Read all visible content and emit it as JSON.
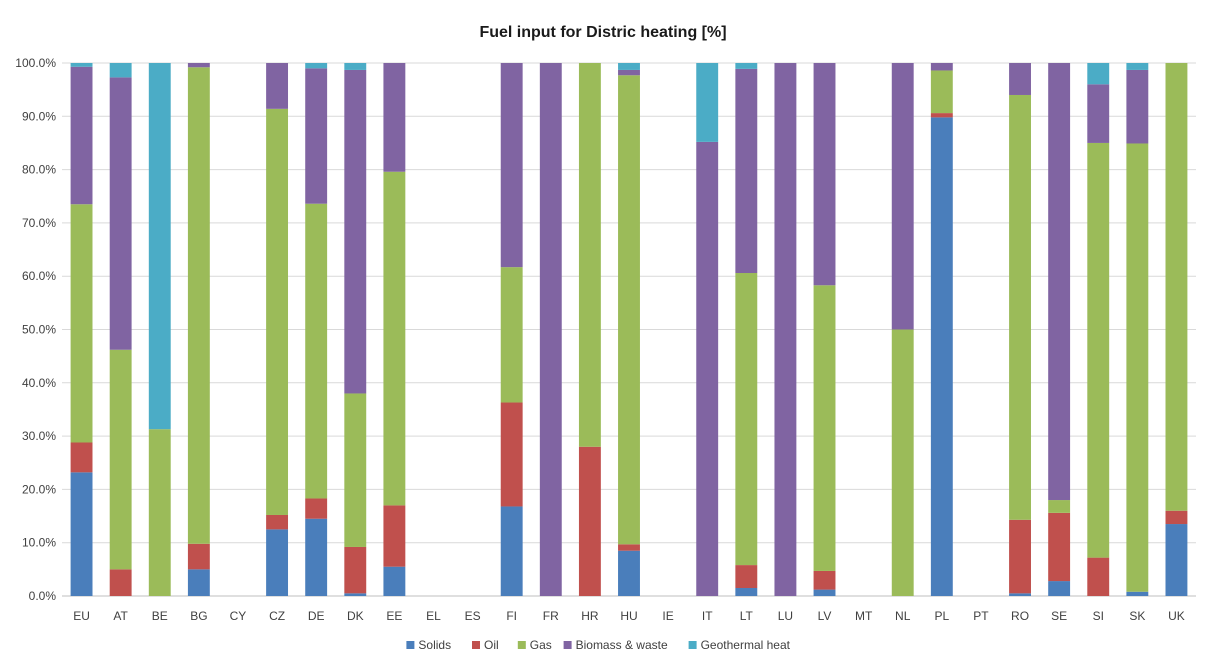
{
  "chart_data": {
    "type": "bar",
    "stacked": true,
    "title": "Fuel input for Distric heating [%]",
    "xlabel": "",
    "ylabel": "",
    "ylim": [
      0,
      100
    ],
    "y_ticks": [
      "0.0%",
      "10.0%",
      "20.0%",
      "30.0%",
      "40.0%",
      "50.0%",
      "60.0%",
      "70.0%",
      "80.0%",
      "90.0%",
      "100.0%"
    ],
    "grid": true,
    "legend_position": "bottom",
    "categories": [
      "EU",
      "AT",
      "BE",
      "BG",
      "CY",
      "CZ",
      "DE",
      "DK",
      "EE",
      "EL",
      "ES",
      "FI",
      "FR",
      "HR",
      "HU",
      "IE",
      "IT",
      "LT",
      "LU",
      "LV",
      "MT",
      "NL",
      "PL",
      "PT",
      "RO",
      "SE",
      "SI",
      "SK",
      "UK"
    ],
    "series": [
      {
        "name": "Solids",
        "color": "#4a7ebb",
        "values": [
          23.2,
          0,
          0,
          5.0,
          0,
          12.5,
          14.5,
          0.5,
          5.5,
          0,
          0,
          16.8,
          0,
          0,
          8.5,
          0,
          0,
          1.5,
          0,
          1.2,
          0,
          0,
          89.8,
          0,
          0.5,
          2.8,
          0,
          0.8,
          13.5
        ]
      },
      {
        "name": "Oil",
        "color": "#c0504d",
        "values": [
          5.6,
          5.0,
          0,
          4.8,
          0,
          2.7,
          3.8,
          8.7,
          11.5,
          0,
          0,
          19.5,
          0,
          28.0,
          1.2,
          0,
          0,
          4.3,
          0,
          3.5,
          0,
          0,
          0.8,
          0,
          13.8,
          12.8,
          7.2,
          0,
          2.5
        ]
      },
      {
        "name": "Gas",
        "color": "#9bbb59",
        "values": [
          44.7,
          41.2,
          31.3,
          89.4,
          0,
          76.2,
          55.3,
          28.8,
          62.6,
          0,
          0,
          25.4,
          0,
          72.0,
          88.0,
          0,
          0,
          54.8,
          0,
          53.6,
          0,
          50.0,
          8.0,
          0,
          79.7,
          2.4,
          77.8,
          84.1,
          84.0
        ]
      },
      {
        "name": "Biomass & waste",
        "color": "#8064a2",
        "values": [
          25.8,
          51.1,
          0,
          0.8,
          0,
          8.6,
          25.4,
          60.7,
          20.4,
          0,
          0,
          38.3,
          100,
          0,
          1.0,
          0,
          85.2,
          38.3,
          100,
          41.7,
          0,
          50.0,
          1.4,
          0,
          6.0,
          82.0,
          11.0,
          13.8,
          0
        ]
      },
      {
        "name": "Geothermal heat",
        "color": "#4bacc6",
        "values": [
          0.7,
          2.7,
          68.7,
          0,
          0,
          0,
          1.0,
          1.3,
          0,
          0,
          0,
          0,
          0,
          0,
          1.3,
          0,
          14.8,
          1.1,
          0,
          0,
          0,
          0,
          0,
          0,
          0,
          0,
          4.0,
          1.3,
          0
        ]
      }
    ]
  }
}
